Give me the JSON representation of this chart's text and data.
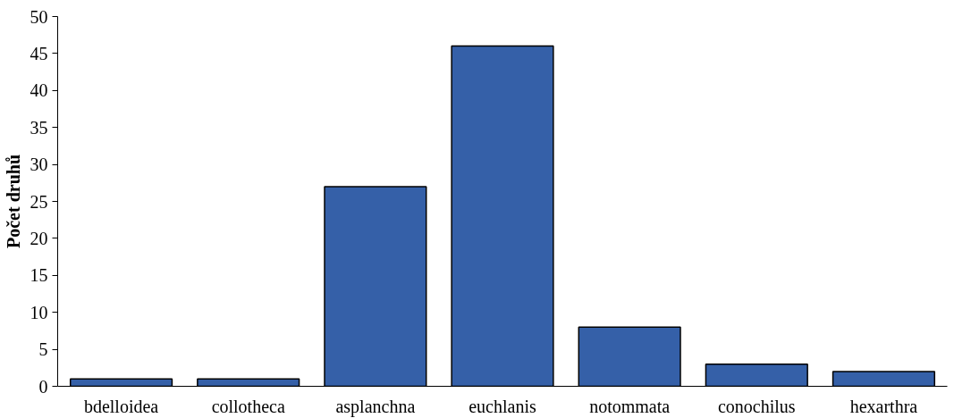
{
  "chart_data": {
    "type": "bar",
    "ylabel": "Počet druhů",
    "categories": [
      "bdelloidea",
      "collotheca",
      "asplanchna",
      "euchlanis",
      "notommata",
      "conochilus",
      "hexarthra"
    ],
    "values": [
      1,
      1,
      27,
      46,
      8,
      3,
      2
    ],
    "color": "#3560a8",
    "ylim": [
      0,
      50
    ],
    "yticks": [
      0,
      5,
      10,
      15,
      20,
      25,
      30,
      35,
      40,
      45,
      50
    ],
    "grid": false
  }
}
